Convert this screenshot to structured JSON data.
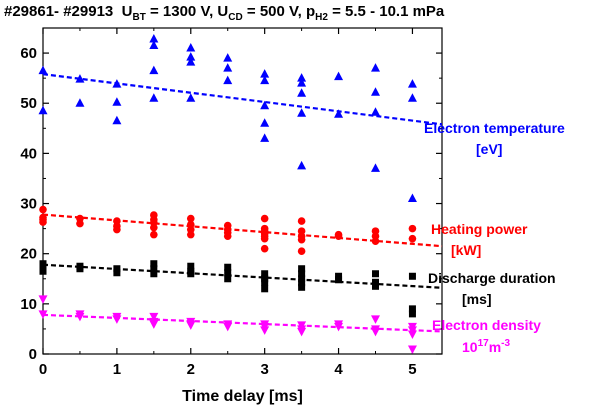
{
  "chart_data": {
    "type": "scatter",
    "title": {
      "shots": "#29861- #29913",
      "ubt_sym": "U",
      "ubt_sub": "BT",
      "ubt_val": " = 1300 V, ",
      "ucd_sym": "U",
      "ucd_sub": "CD",
      "ucd_val": " = 500 V, ",
      "p_sym": "p",
      "p_sub": "H2",
      "p_val": " = 5.5 - 10.1 mPa"
    },
    "xlabel": "Time delay [ms]",
    "ylabel": "",
    "xlim": [
      0,
      5.4
    ],
    "ylim": [
      0,
      65
    ],
    "x_ticks": [
      "0",
      "1",
      "2",
      "3",
      "4",
      "5"
    ],
    "y_ticks": [
      "0",
      "10",
      "20",
      "30",
      "40",
      "50",
      "60"
    ],
    "grid": false,
    "series": [
      {
        "name": "Electron temperature [eV]",
        "label_line1": "Electron temperature",
        "label_line2": "[eV]",
        "color": "#0000ff",
        "marker": "triangle-up",
        "points": [
          [
            0,
            56.5
          ],
          [
            0,
            48.5
          ],
          [
            0.5,
            54.8
          ],
          [
            0.5,
            50
          ],
          [
            1,
            53.8
          ],
          [
            1,
            50.2
          ],
          [
            1,
            46.5
          ],
          [
            1.5,
            62.8
          ],
          [
            1.5,
            61.5
          ],
          [
            1.5,
            56.5
          ],
          [
            1.5,
            51
          ],
          [
            2,
            61
          ],
          [
            2,
            59.2
          ],
          [
            2,
            58.2
          ],
          [
            2,
            51
          ],
          [
            2.5,
            59
          ],
          [
            2.5,
            57
          ],
          [
            2.5,
            54.5
          ],
          [
            3,
            55.8
          ],
          [
            3,
            54.5
          ],
          [
            3,
            49.5
          ],
          [
            3,
            46
          ],
          [
            3,
            43
          ],
          [
            3.5,
            55
          ],
          [
            3.5,
            54
          ],
          [
            3.5,
            52
          ],
          [
            3.5,
            48
          ],
          [
            3.5,
            37.5
          ],
          [
            4,
            55.3
          ],
          [
            4,
            47.8
          ],
          [
            4.5,
            57
          ],
          [
            4.5,
            52.2
          ],
          [
            4.5,
            48.2
          ],
          [
            4.5,
            37
          ],
          [
            5,
            53.8
          ],
          [
            5,
            51
          ],
          [
            5,
            31
          ]
        ],
        "fit": [
          [
            0,
            55.8
          ],
          [
            5.4,
            45.8
          ]
        ]
      },
      {
        "name": "Heating power [kW]",
        "label_line1": "Heating power",
        "label_line2": "[kW]",
        "color": "#ff0000",
        "marker": "circle",
        "points": [
          [
            0,
            28.8
          ],
          [
            0,
            27.2
          ],
          [
            0,
            26.8
          ],
          [
            0,
            26.3
          ],
          [
            0.5,
            27
          ],
          [
            0.5,
            26
          ],
          [
            1,
            26.5
          ],
          [
            1,
            25.5
          ],
          [
            1,
            24.8
          ],
          [
            1.5,
            27.7
          ],
          [
            1.5,
            26.8
          ],
          [
            1.5,
            26.2
          ],
          [
            1.5,
            25.2
          ],
          [
            1.5,
            23.8
          ],
          [
            2,
            27
          ],
          [
            2,
            25.8
          ],
          [
            2,
            24.8
          ],
          [
            2,
            23.8
          ],
          [
            2.5,
            25.6
          ],
          [
            2.5,
            24.8
          ],
          [
            2.5,
            24.2
          ],
          [
            2.5,
            23.5
          ],
          [
            3,
            27
          ],
          [
            3,
            25
          ],
          [
            3,
            24.5
          ],
          [
            3,
            24
          ],
          [
            3,
            23.5
          ],
          [
            3,
            23
          ],
          [
            3,
            21
          ],
          [
            3.5,
            26.5
          ],
          [
            3.5,
            24.5
          ],
          [
            3.5,
            23.5
          ],
          [
            3.5,
            22.8
          ],
          [
            3.5,
            20.5
          ],
          [
            4,
            23.8
          ],
          [
            4,
            23.5
          ],
          [
            4.5,
            24.5
          ],
          [
            4.5,
            23.5
          ],
          [
            4.5,
            22.5
          ],
          [
            5,
            25
          ],
          [
            5,
            23
          ]
        ],
        "fit": [
          [
            0,
            27.8
          ],
          [
            5.4,
            21.5
          ]
        ]
      },
      {
        "name": "Discharge duration [ms]",
        "label_line1": "Discharge duration",
        "label_line2": "[ms]",
        "color": "#000000",
        "marker": "square",
        "points": [
          [
            0,
            18
          ],
          [
            0,
            16.8
          ],
          [
            0,
            16.5
          ],
          [
            0.5,
            17.5
          ],
          [
            0.5,
            17
          ],
          [
            1,
            17
          ],
          [
            1,
            16.2
          ],
          [
            1.5,
            18
          ],
          [
            1.5,
            17
          ],
          [
            1.5,
            16
          ],
          [
            2,
            17.5
          ],
          [
            2,
            16.5
          ],
          [
            2,
            16
          ],
          [
            2.5,
            17.3
          ],
          [
            2.5,
            16.2
          ],
          [
            2.5,
            15
          ],
          [
            3,
            16
          ],
          [
            3,
            15
          ],
          [
            3,
            14.3
          ],
          [
            3,
            13
          ],
          [
            3.5,
            17
          ],
          [
            3.5,
            16
          ],
          [
            3.5,
            15
          ],
          [
            3.5,
            14.2
          ],
          [
            3.5,
            13.3
          ],
          [
            4,
            15.5
          ],
          [
            4,
            14.8
          ],
          [
            4.5,
            16
          ],
          [
            4.5,
            14.3
          ],
          [
            4.5,
            13.5
          ],
          [
            5,
            15.5
          ],
          [
            5,
            9
          ],
          [
            5,
            8
          ]
        ],
        "fit": [
          [
            0,
            17.8
          ],
          [
            5.4,
            13.2
          ]
        ]
      },
      {
        "name": "Electron density 10^17 m^-3",
        "label_line1": "Electron density",
        "label_line2_base": "10",
        "label_line2_exp1": "17",
        "label_line2_mid": "m",
        "label_line2_exp2": "-3",
        "color": "#ff00ff",
        "marker": "triangle-down",
        "points": [
          [
            0,
            11
          ],
          [
            0,
            8
          ],
          [
            0.5,
            8
          ],
          [
            0.5,
            7.5
          ],
          [
            1,
            7.5
          ],
          [
            1,
            7
          ],
          [
            1.5,
            7.5
          ],
          [
            1.5,
            6.5
          ],
          [
            1.5,
            6
          ],
          [
            2,
            6.5
          ],
          [
            2,
            6
          ],
          [
            2,
            5.8
          ],
          [
            2.5,
            6
          ],
          [
            2.5,
            5.5
          ],
          [
            3,
            6
          ],
          [
            3,
            5.5
          ],
          [
            3,
            4.8
          ],
          [
            3.5,
            5.8
          ],
          [
            3.5,
            5
          ],
          [
            3.5,
            4.5
          ],
          [
            4,
            6
          ],
          [
            4,
            5.5
          ],
          [
            4.5,
            7
          ],
          [
            4.5,
            5
          ],
          [
            4.5,
            4.5
          ],
          [
            5,
            5.5
          ],
          [
            5,
            4.8
          ],
          [
            5,
            4
          ],
          [
            5,
            1
          ]
        ],
        "fit": [
          [
            0,
            7.8
          ],
          [
            5.4,
            4.5
          ]
        ]
      }
    ],
    "legend_position": "right, inline labels"
  }
}
